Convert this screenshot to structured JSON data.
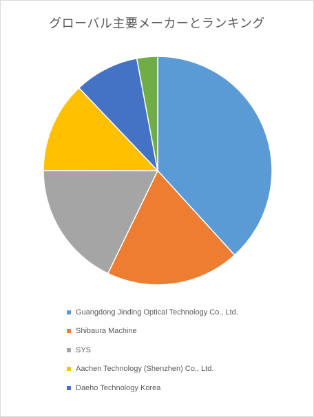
{
  "chart_data": {
    "type": "pie",
    "title": "グローバル主要メーカーとランキング",
    "slices": [
      {
        "name": "Guangdong Jinding Optical Technology Co., Ltd.",
        "value": 39.2,
        "color": "#5b9bd5",
        "in_legend": true
      },
      {
        "name": "Shibaura Machine",
        "value": 19.4,
        "color": "#ed7d31",
        "in_legend": true
      },
      {
        "name": "SYS",
        "value": 18.3,
        "color": "#a5a5a5",
        "in_legend": true
      },
      {
        "name": "Aachen Technology (Shenzhen) Co., Ltd.",
        "value": 13.2,
        "color": "#ffc000",
        "in_legend": true
      },
      {
        "name": "Daeho Technology Korea",
        "value": 9.4,
        "color": "#4472c4",
        "in_legend": true
      },
      {
        "name": "",
        "value": 3.0,
        "color": "#70ad47",
        "in_legend": false
      }
    ],
    "start_angle": "top",
    "direction": "clockwise",
    "legend_position": "bottom"
  }
}
